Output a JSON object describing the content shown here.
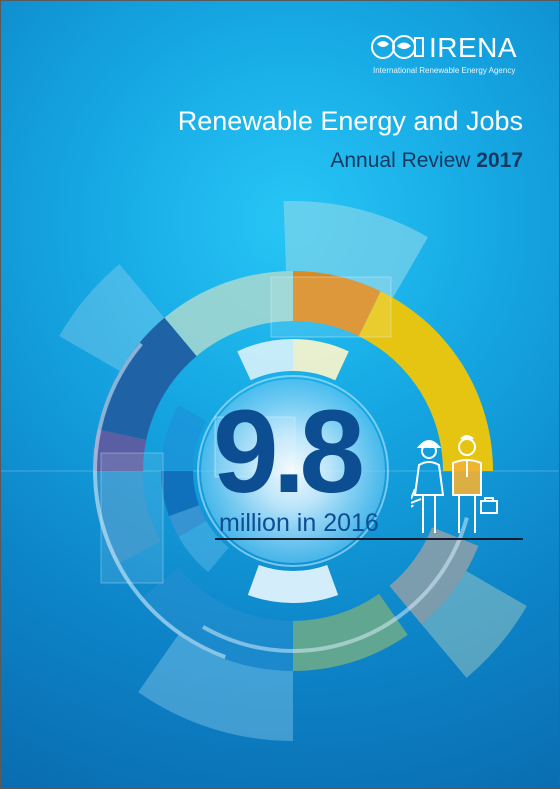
{
  "logo": {
    "name": "IRENA",
    "subtitle": "International Renewable Energy Agency"
  },
  "cover": {
    "title": "Renewable Energy and Jobs",
    "subtitle_prefix": "Annual Review ",
    "subtitle_year": "2017",
    "figure_value": "9.8",
    "figure_caption": "million in 2016"
  },
  "colors": {
    "background": "#1599d8",
    "title_text": "#ffffff",
    "subtitle_text": "#16385f",
    "figure_text": "#0d4e93",
    "ring_orange": "#d98a22",
    "ring_yellow": "#e6c512",
    "ring_dark_blue": "#1f63a6",
    "ring_purple": "#5a5fa4",
    "ring_green": "#6aaa8a",
    "ring_grey": "#8fa0a8"
  },
  "icons": [
    "world-leaf-logo-icon",
    "female-worker-icon",
    "male-worker-icon",
    "wrench-icon",
    "briefcase-icon"
  ]
}
